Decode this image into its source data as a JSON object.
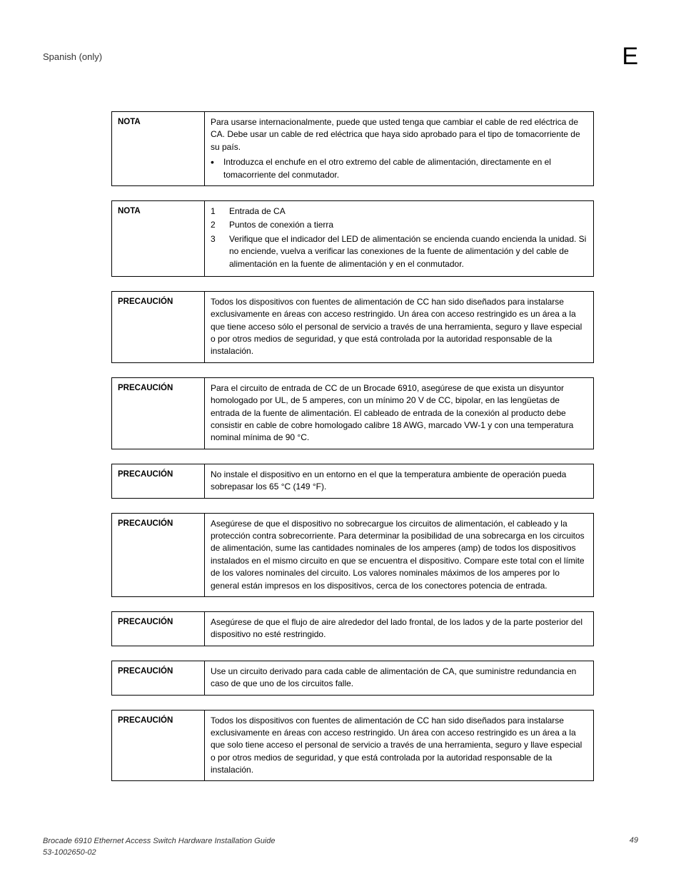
{
  "header": {
    "section_title": "Spanish (only)",
    "appendix_letter": "E"
  },
  "notices": [
    {
      "label": "NOTA",
      "type": "para-bullet",
      "para": "Para usarse internacionalmente, puede que usted tenga que cambiar el cable de red eléctrica de CA.  Debe usar un cable de red eléctrica que haya sido aprobado para el tipo de tomacorriente de su país.",
      "bullet": "Introduzca el enchufe en el otro extremo del cable de alimentación, directamente en el tomacorriente del conmutador."
    },
    {
      "label": "NOTA",
      "type": "numbered",
      "items": [
        {
          "n": "1",
          "t": "Entrada de CA"
        },
        {
          "n": "2",
          "t": "Puntos de conexión a tierra"
        },
        {
          "n": "3",
          "t": "Verifique que el indicador del LED de alimentación se encienda cuando encienda la unidad. Si no enciende, vuelva a verificar las conexiones de la fuente de alimentación y del cable de alimentación en la fuente de alimentación y en el conmutador."
        }
      ]
    },
    {
      "label": "PRECAUCIÓN",
      "type": "para",
      "text": "Todos los dispositivos con fuentes de alimentación de CC han sido diseñados para instalarse exclusivamente en áreas con acceso restringido. Un área con acceso restringido es un área a la que tiene acceso sólo el personal de servicio a través de una herramienta, seguro y llave especial o por otros medios de seguridad, y que está controlada por la autoridad responsable de la instalación."
    },
    {
      "label": "PRECAUCIÓN",
      "type": "para",
      "text": "Para el circuito de entrada de CC de un Brocade 6910, asegúrese de que exista un disyuntor homologado por UL, de 5 amperes, con un mínimo 20 V de CC, bipolar, en las lengüetas de entrada de la fuente de alimentación.  El cableado de entrada de la conexión al producto debe consistir en cable de cobre homologado calibre 18 AWG, marcado VW-1 y con una temperatura nominal mínima de 90 °C."
    },
    {
      "label": "PRECAUCIÓN",
      "type": "para",
      "text": "No instale el dispositivo en un entorno en el que la temperatura ambiente de operación pueda sobrepasar los 65 °C (149 °F)."
    },
    {
      "label": "PRECAUCIÓN",
      "type": "para",
      "text": "Asegúrese de que el dispositivo no sobrecargue los circuitos de alimentación, el cableado y la protección contra sobrecorriente.  Para determinar la posibilidad de una sobrecarga en los circuitos de alimentación, sume las cantidades nominales de los amperes (amp) de todos los dispositivos instalados en el mismo circuito en que se encuentra el dispositivo.  Compare este total con el límite de los valores nominales del circuito.  Los valores nominales máximos de los amperes por lo general están impresos en los dispositivos, cerca de los conectores potencia de entrada."
    },
    {
      "label": "PRECAUCIÓN",
      "type": "para",
      "text": "Asegúrese de que el flujo de aire alrededor del lado frontal, de los lados y de la parte posterior del dispositivo no esté restringido."
    },
    {
      "label": "PRECAUCIÓN",
      "type": "para",
      "text": "Use un circuito derivado para cada cable de alimentación de CA, que suministre redundancia en caso de que uno de los circuitos falle."
    },
    {
      "label": "PRECAUCIÓN",
      "type": "para",
      "text": "Todos los dispositivos con fuentes de alimentación de CC han sido diseñados para instalarse exclusivamente en áreas con acceso restringido. Un área con acceso restringido es un área a la que solo tiene acceso el personal de servicio a través de una herramienta, seguro y llave especial o por otros medios de seguridad, y que está controlada por la autoridad responsable de la instalación."
    }
  ],
  "footer": {
    "title": "Brocade 6910 Ethernet Access Switch Hardware Installation Guide",
    "docnum": "53-1002650-02",
    "page": "49"
  }
}
